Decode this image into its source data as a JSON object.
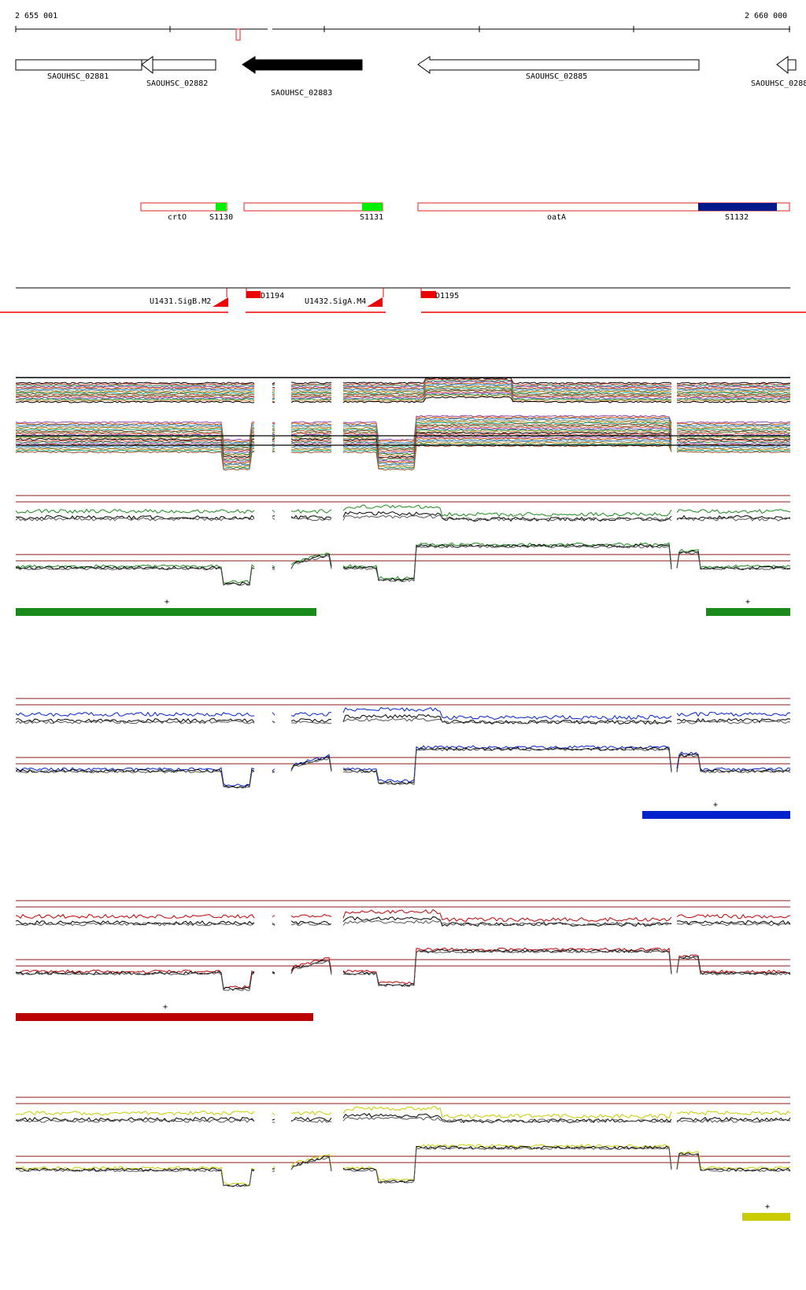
{
  "ruler": {
    "start_label": "2 655 001",
    "end_label": "2 660 000",
    "start_bp": 2655001,
    "end_bp": 2660000
  },
  "genes": [
    {
      "id": "SAOUHSC_02881",
      "label": "SAOUHSC_02881",
      "strand": "-",
      "style": "outline",
      "truncated": "left"
    },
    {
      "id": "SAOUHSC_02882",
      "label": "SAOUHSC_02882",
      "strand": "-",
      "style": "outline"
    },
    {
      "id": "SAOUHSC_02883",
      "label": "SAOUHSC_02883",
      "strand": "-",
      "style": "filled"
    },
    {
      "id": "SAOUHSC_02885",
      "label": "SAOUHSC_02885",
      "strand": "-",
      "style": "outline"
    },
    {
      "id": "SAOUHSC_0288",
      "label": "SAOUHSC_0288",
      "strand": "-",
      "style": "outline",
      "truncated": "right"
    }
  ],
  "segments": [
    {
      "label": "crtO",
      "feature": "S1130",
      "feature_color": "#00ee00"
    },
    {
      "label": "",
      "feature": "S1131",
      "feature_color": "#00ee00"
    },
    {
      "label": "oatA",
      "feature": "S1132",
      "feature_color": "#001a8c"
    }
  ],
  "promoters": [
    {
      "label": "U1431.SigB.M2",
      "type": "promoter"
    },
    {
      "label": "D1194",
      "type": "terminator"
    },
    {
      "label": "U1432.SigA.M4",
      "type": "promoter"
    },
    {
      "label": "D1195",
      "type": "terminator"
    }
  ],
  "panels": [
    {
      "name": "green",
      "color": "#1a8a1a",
      "marker": "+"
    },
    {
      "name": "blue",
      "color": "#0022cc",
      "marker": "+"
    },
    {
      "name": "red",
      "color": "#bb0000",
      "marker": "+"
    },
    {
      "name": "yellow",
      "color": "#c8cc00",
      "marker": "+"
    }
  ],
  "colors": {
    "outline": "#000000",
    "segment_border": "#e02020",
    "reference_line": "#8b1a1a",
    "promoter": "#ee0000"
  }
}
